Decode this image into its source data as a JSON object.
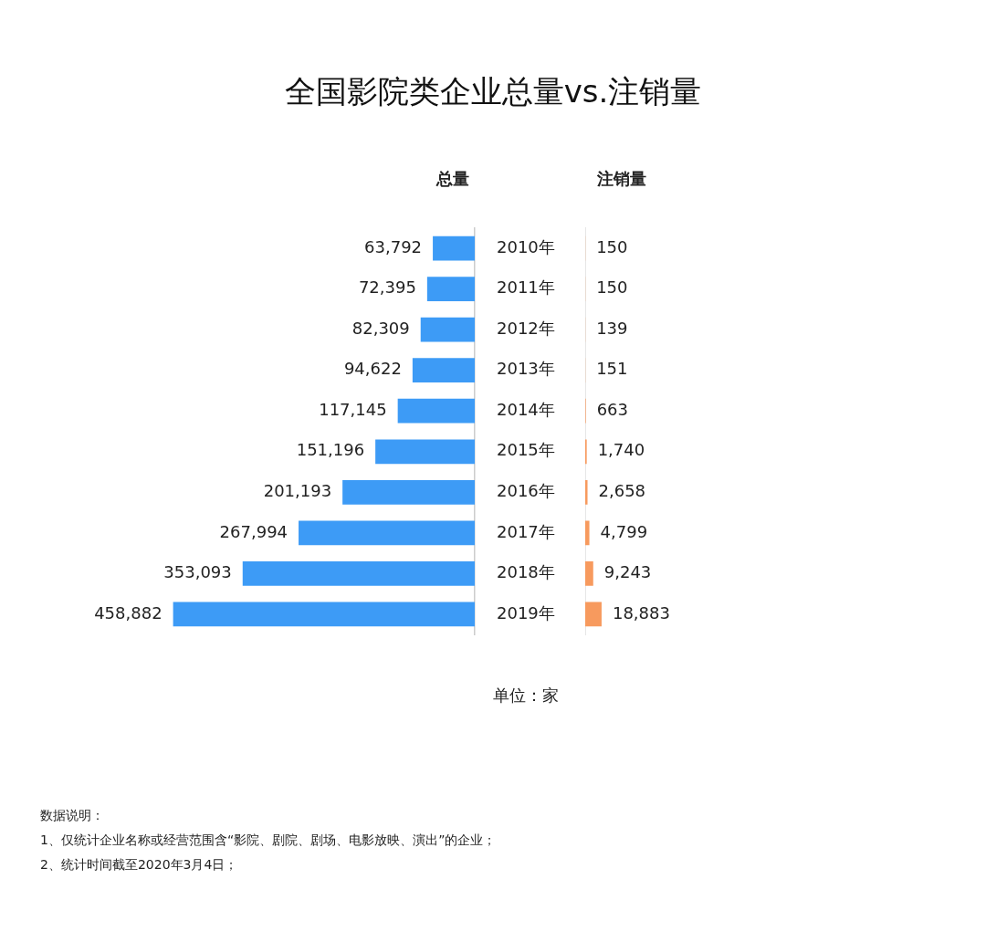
{
  "chart_data": [
    {
      "type": "bar",
      "orientation": "horizontal",
      "title": "全国影院类企业总量vs.注销量",
      "categories": [
        "2010年",
        "2011年",
        "2012年",
        "2013年",
        "2014年",
        "2015年",
        "2016年",
        "2017年",
        "2018年",
        "2019年"
      ],
      "series": [
        {
          "name": "总量",
          "color": "#3d9bf6",
          "values": [
            63792,
            72395,
            82309,
            94622,
            117145,
            151196,
            201193,
            267994,
            353093,
            458882
          ],
          "value_labels": [
            "63,792",
            "72,395",
            "82,309",
            "94,622",
            "117,145",
            "151,196",
            "201,193",
            "267,994",
            "353,093",
            "458,882"
          ]
        }
      ],
      "tick_labels": "y",
      "annotations": [
        "单位：家",
        "数据说明：",
        "1、仅统计企业名称或经营范围含“影院、剧院、剧场、电影放映、演出”的企业；",
        "2、统计时间截至2020年3月4日；"
      ]
    },
    {
      "type": "bar",
      "orientation": "horizontal",
      "categories": [
        null,
        null,
        null,
        null,
        null,
        null,
        null,
        null,
        null,
        null
      ],
      "series": [
        {
          "name": "注销量",
          "color": "#f79a5e",
          "values": [
            150,
            150,
            139,
            151,
            663,
            1740,
            2658,
            4799,
            9243,
            18883
          ],
          "value_labels": [
            "150",
            "150",
            "139",
            "151",
            "663",
            "1,740",
            "2,658",
            "4,799",
            "9,243",
            "18,883"
          ]
        }
      ],
      "tick_labels": false
    }
  ]
}
